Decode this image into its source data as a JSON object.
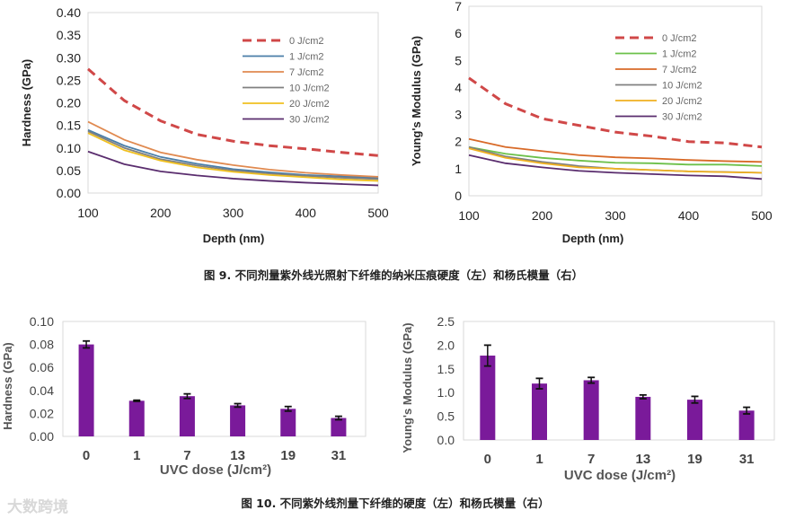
{
  "captions": {
    "fig9": "图 9. 不同剂量紫外线光照射下纤维的纳米压痕硬度（左）和杨氏模量（右）",
    "fig10": "图 10. 不同紫外线剂量下纤维的硬度（左）和杨氏模量（右）"
  },
  "watermark": "大数跨境",
  "chart_data": [
    {
      "type": "line",
      "title": "",
      "xlabel": "Depth (nm)",
      "ylabel": "Hardness (GPa)",
      "xlim": [
        100,
        500
      ],
      "ylim": [
        0,
        0.4
      ],
      "xticks": [
        "100",
        "200",
        "300",
        "400",
        "500"
      ],
      "yticks": [
        "0.00",
        "0.05",
        "0.10",
        "0.15",
        "0.20",
        "0.25",
        "0.30",
        "0.35",
        "0.40"
      ],
      "legend_position": "top-right",
      "x": [
        100,
        150,
        200,
        250,
        300,
        350,
        400,
        450,
        500
      ],
      "series": [
        {
          "name": "0 J/cm2",
          "color": "#d04848",
          "dashed": true,
          "values": [
            0.275,
            0.205,
            0.16,
            0.13,
            0.115,
            0.105,
            0.098,
            0.09,
            0.083
          ]
        },
        {
          "name": "1 J/cm2",
          "color": "#4a7ea8",
          "values": [
            0.14,
            0.105,
            0.08,
            0.065,
            0.053,
            0.046,
            0.04,
            0.037,
            0.033
          ]
        },
        {
          "name": "7 J/cm2",
          "color": "#e08a50",
          "values": [
            0.158,
            0.118,
            0.09,
            0.074,
            0.062,
            0.052,
            0.045,
            0.04,
            0.036
          ]
        },
        {
          "name": "10 J/cm2",
          "color": "#808080",
          "values": [
            0.137,
            0.1,
            0.075,
            0.061,
            0.05,
            0.043,
            0.038,
            0.034,
            0.031
          ]
        },
        {
          "name": "20 J/cm2",
          "color": "#f0c020",
          "values": [
            0.133,
            0.095,
            0.072,
            0.057,
            0.047,
            0.04,
            0.035,
            0.03,
            0.027
          ]
        },
        {
          "name": "30 J/cm2",
          "color": "#5a2d6e",
          "values": [
            0.092,
            0.064,
            0.048,
            0.039,
            0.032,
            0.027,
            0.023,
            0.02,
            0.017
          ]
        }
      ]
    },
    {
      "type": "line",
      "title": "",
      "xlabel": "Depth (nm)",
      "ylabel": "Young's Modulus (GPa)",
      "xlim": [
        100,
        500
      ],
      "ylim": [
        0,
        7
      ],
      "xticks": [
        "100",
        "200",
        "300",
        "400",
        "500"
      ],
      "yticks": [
        "0",
        "1",
        "2",
        "3",
        "4",
        "5",
        "6",
        "7"
      ],
      "legend_position": "top-right",
      "x": [
        100,
        150,
        200,
        250,
        300,
        350,
        400,
        450,
        500
      ],
      "series": [
        {
          "name": "0 J/cm2",
          "color": "#d04848",
          "dashed": true,
          "values": [
            4.35,
            3.4,
            2.85,
            2.6,
            2.35,
            2.2,
            2.0,
            1.95,
            1.8
          ]
        },
        {
          "name": "1 J/cm2",
          "color": "#6cc04a",
          "values": [
            1.8,
            1.55,
            1.4,
            1.3,
            1.22,
            1.2,
            1.15,
            1.15,
            1.1
          ]
        },
        {
          "name": "7 J/cm2",
          "color": "#d86a28",
          "values": [
            2.1,
            1.8,
            1.65,
            1.5,
            1.42,
            1.38,
            1.32,
            1.28,
            1.25
          ]
        },
        {
          "name": "10 J/cm2",
          "color": "#808080",
          "values": [
            1.8,
            1.45,
            1.25,
            1.1,
            1.0,
            0.95,
            0.9,
            0.88,
            0.85
          ]
        },
        {
          "name": "20 J/cm2",
          "color": "#f0b020",
          "values": [
            1.75,
            1.4,
            1.2,
            1.05,
            1.0,
            0.95,
            0.9,
            0.87,
            0.85
          ]
        },
        {
          "name": "30 J/cm2",
          "color": "#5a2d6e",
          "values": [
            1.5,
            1.2,
            1.05,
            0.92,
            0.85,
            0.8,
            0.75,
            0.72,
            0.62
          ]
        }
      ]
    },
    {
      "type": "bar",
      "xlabel": "UVC  dose (J/cm²)",
      "ylabel": "Hardness (GPa)",
      "ylim": [
        0,
        0.1
      ],
      "yticks": [
        "0.00",
        "0.02",
        "0.04",
        "0.06",
        "0.08",
        "0.10"
      ],
      "categories": [
        "0",
        "1",
        "7",
        "13",
        "19",
        "31"
      ],
      "values": [
        0.08,
        0.031,
        0.035,
        0.027,
        0.024,
        0.016
      ],
      "errors": [
        0.003,
        0.0005,
        0.002,
        0.0015,
        0.002,
        0.0015
      ],
      "color": "#7a1a9a"
    },
    {
      "type": "bar",
      "xlabel": "UVC  dose (J/cm²)",
      "ylabel": "Young's Modulus (GPa)",
      "ylim": [
        0,
        2.5
      ],
      "yticks": [
        "0.0",
        "0.5",
        "1.0",
        "1.5",
        "2.0",
        "2.5"
      ],
      "categories": [
        "0",
        "1",
        "7",
        "13",
        "19",
        "31"
      ],
      "values": [
        1.78,
        1.19,
        1.26,
        0.91,
        0.85,
        0.62
      ],
      "errors": [
        0.22,
        0.11,
        0.06,
        0.04,
        0.07,
        0.07
      ],
      "color": "#7a1a9a"
    }
  ]
}
